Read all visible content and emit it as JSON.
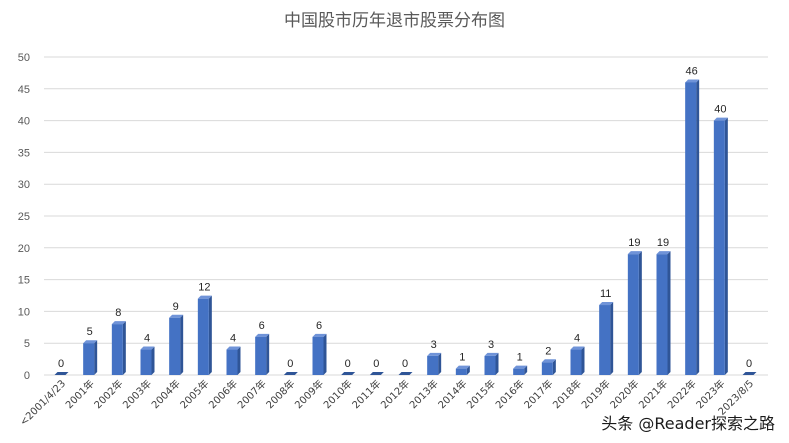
{
  "chart_data": {
    "type": "bar",
    "title": "中国股市历年退市股票分布图",
    "xlabel": "",
    "ylabel": "",
    "ylim": [
      0,
      50
    ],
    "yticks": [
      0,
      5,
      10,
      15,
      20,
      25,
      30,
      35,
      40,
      45,
      50
    ],
    "grid": true,
    "legend": "none",
    "bar_color": "#4472C4",
    "categories": [
      "<2001/4/23",
      "2001年",
      "2002年",
      "2003年",
      "2004年",
      "2005年",
      "2006年",
      "2007年",
      "2008年",
      "2009年",
      "2010年",
      "2011年",
      "2012年",
      "2013年",
      "2014年",
      "2015年",
      "2016年",
      "2017年",
      "2018年",
      "2019年",
      "2020年",
      "2021年",
      "2022年",
      "2023年",
      "2023/8/5"
    ],
    "values": [
      0,
      5,
      8,
      4,
      9,
      12,
      4,
      6,
      0,
      6,
      0,
      0,
      0,
      3,
      1,
      3,
      1,
      2,
      4,
      11,
      19,
      19,
      46,
      40,
      0
    ]
  },
  "watermark": "头条 @Reader探索之路"
}
